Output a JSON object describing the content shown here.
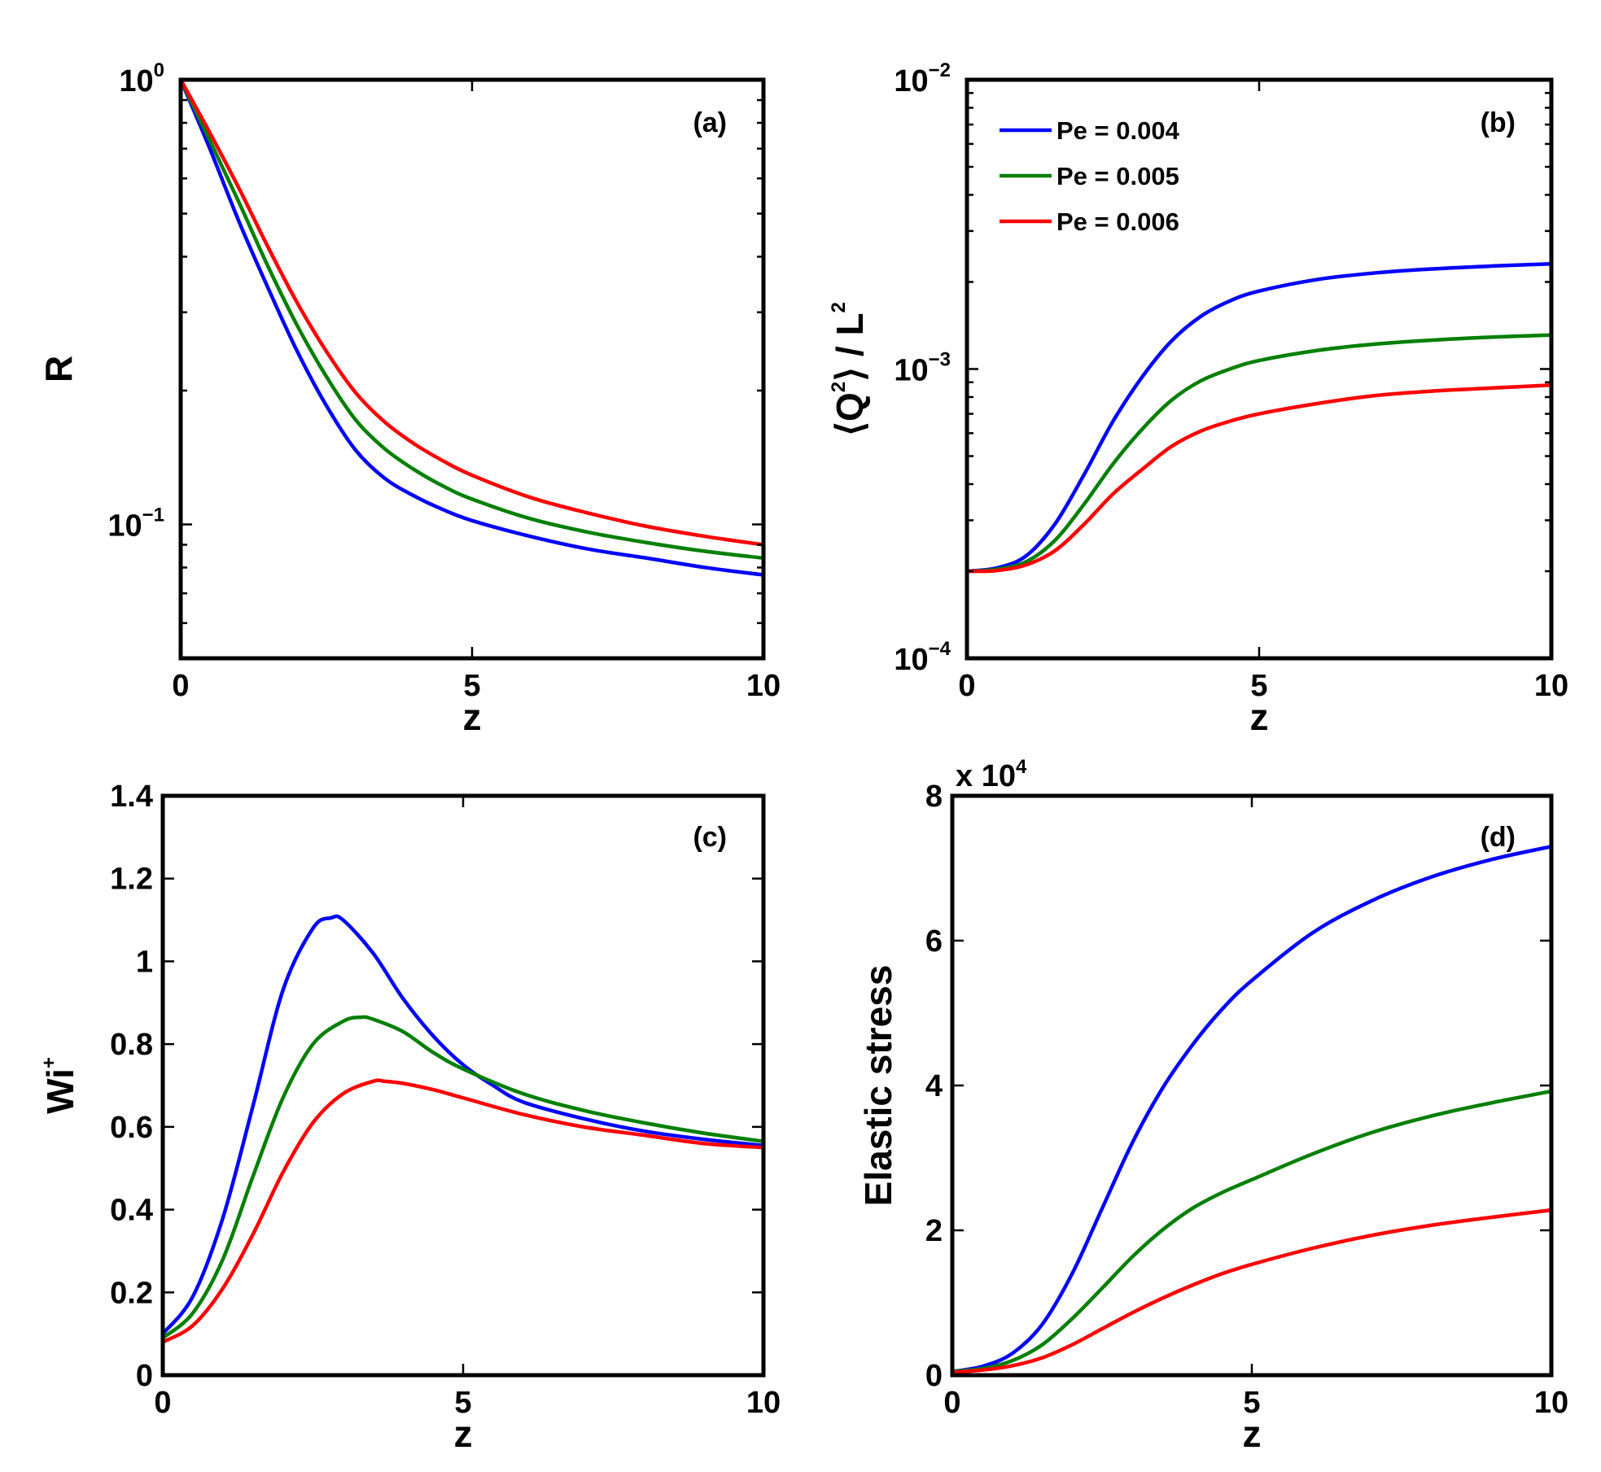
{
  "colors": {
    "blue": "#0000ff",
    "green": "#007f00",
    "red": "#ff0000"
  },
  "legend": {
    "panel": "b",
    "entries": [
      {
        "label": "Pe = 0.004",
        "color": "#0000ff"
      },
      {
        "label": "Pe = 0.005",
        "color": "#007f00"
      },
      {
        "label": "Pe = 0.006",
        "color": "#ff0000"
      }
    ]
  },
  "chart_data": [
    {
      "id": "a",
      "panel_label": "(a)",
      "type": "line",
      "xlabel": "z",
      "ylabel": "R",
      "xlim": [
        0,
        10
      ],
      "ylim": [
        0.05,
        1
      ],
      "yscale": "log",
      "xticks": [
        0,
        5,
        10
      ],
      "yticks": [
        {
          "value": 1,
          "base": "10",
          "exp": "0"
        },
        {
          "value": 0.1,
          "base": "10",
          "exp": "−1"
        }
      ],
      "series": [
        {
          "name": "Pe = 0.004",
          "color": "#0000ff",
          "x": [
            0,
            0.5,
            1,
            1.5,
            2,
            2.5,
            3,
            3.5,
            4,
            4.5,
            5,
            6,
            7,
            8,
            9,
            10
          ],
          "y": [
            1.0,
            0.7,
            0.48,
            0.34,
            0.245,
            0.185,
            0.147,
            0.127,
            0.116,
            0.108,
            0.102,
            0.094,
            0.088,
            0.084,
            0.08,
            0.077
          ]
        },
        {
          "name": "Pe = 0.005",
          "color": "#007f00",
          "x": [
            0,
            0.5,
            1,
            1.5,
            2,
            2.5,
            3,
            3.5,
            4,
            4.5,
            5,
            6,
            7,
            8,
            9,
            10
          ],
          "y": [
            1.0,
            0.73,
            0.53,
            0.38,
            0.28,
            0.215,
            0.172,
            0.148,
            0.133,
            0.122,
            0.114,
            0.103,
            0.096,
            0.091,
            0.087,
            0.084
          ]
        },
        {
          "name": "Pe = 0.006",
          "color": "#ff0000",
          "x": [
            0,
            0.5,
            1,
            1.5,
            2,
            2.5,
            3,
            3.5,
            4,
            4.5,
            5,
            6,
            7,
            8,
            9,
            10
          ],
          "y": [
            1.0,
            0.76,
            0.57,
            0.42,
            0.315,
            0.245,
            0.198,
            0.17,
            0.152,
            0.139,
            0.129,
            0.115,
            0.106,
            0.099,
            0.094,
            0.09
          ]
        }
      ]
    },
    {
      "id": "b",
      "panel_label": "(b)",
      "type": "line",
      "xlabel": "z",
      "ylabel": "⟨Q²⟩ / L²",
      "xlim": [
        0,
        10
      ],
      "ylim": [
        0.0001,
        0.01
      ],
      "yscale": "log",
      "xticks": [
        0,
        5,
        10
      ],
      "yticks": [
        {
          "value": 0.01,
          "base": "10",
          "exp": "−2"
        },
        {
          "value": 0.001,
          "base": "10",
          "exp": "−3"
        },
        {
          "value": 0.0001,
          "base": "10",
          "exp": "−4"
        }
      ],
      "series": [
        {
          "name": "Pe = 0.004",
          "color": "#0000ff",
          "x": [
            0,
            0.5,
            1,
            1.5,
            2,
            2.5,
            3,
            3.5,
            4,
            4.5,
            5,
            6,
            7,
            8,
            9,
            10
          ],
          "y": [
            0.0002,
            0.000205,
            0.000225,
            0.00029,
            0.00043,
            0.00066,
            0.00094,
            0.00125,
            0.00152,
            0.00172,
            0.00186,
            0.00204,
            0.00215,
            0.00222,
            0.00227,
            0.00231
          ]
        },
        {
          "name": "Pe = 0.005",
          "color": "#007f00",
          "x": [
            0,
            0.5,
            1,
            1.5,
            2,
            2.5,
            3,
            3.5,
            4,
            4.5,
            5,
            6,
            7,
            8,
            9,
            10
          ],
          "y": [
            0.0002,
            0.000203,
            0.000215,
            0.000255,
            0.00034,
            0.00047,
            0.00062,
            0.00078,
            0.00091,
            0.001,
            0.00107,
            0.00116,
            0.00122,
            0.00126,
            0.00129,
            0.00131
          ]
        },
        {
          "name": "Pe = 0.006",
          "color": "#ff0000",
          "x": [
            0,
            0.5,
            1,
            1.5,
            2,
            2.5,
            3,
            3.5,
            4,
            4.5,
            5,
            6,
            7,
            8,
            9,
            10
          ],
          "y": [
            0.0002,
            0.000201,
            0.00021,
            0.000235,
            0.00029,
            0.00037,
            0.00045,
            0.00054,
            0.00061,
            0.00066,
            0.0007,
            0.00076,
            0.00081,
            0.00084,
            0.00086,
            0.00088
          ]
        }
      ]
    },
    {
      "id": "c",
      "panel_label": "(c)",
      "type": "line",
      "xlabel": "z",
      "ylabel": "Wi",
      "ylabel_sup": "+",
      "xlim": [
        0,
        10
      ],
      "ylim": [
        0,
        1.4
      ],
      "yscale": "linear",
      "xticks": [
        0,
        5,
        10
      ],
      "yticks": [
        {
          "value": 0,
          "label": "0"
        },
        {
          "value": 0.2,
          "label": "0.2"
        },
        {
          "value": 0.4,
          "label": "0.4"
        },
        {
          "value": 0.6,
          "label": "0.6"
        },
        {
          "value": 0.8,
          "label": "0.8"
        },
        {
          "value": 1,
          "label": "1"
        },
        {
          "value": 1.2,
          "label": "1.2"
        },
        {
          "value": 1.4,
          "label": "1.4"
        }
      ],
      "series": [
        {
          "name": "Pe = 0.004",
          "color": "#0000ff",
          "x": [
            0,
            0.5,
            1,
            1.5,
            2,
            2.5,
            2.8,
            3,
            3.5,
            4,
            4.5,
            5,
            5.5,
            6,
            7,
            8,
            9,
            10
          ],
          "y": [
            0.1,
            0.19,
            0.38,
            0.65,
            0.93,
            1.08,
            1.105,
            1.1,
            1.02,
            0.91,
            0.82,
            0.75,
            0.7,
            0.66,
            0.62,
            0.59,
            0.57,
            0.555
          ]
        },
        {
          "name": "Pe = 0.005",
          "color": "#007f00",
          "x": [
            0,
            0.5,
            1,
            1.5,
            2,
            2.5,
            3,
            3.3,
            3.5,
            4,
            4.5,
            5,
            6,
            7,
            8,
            9,
            10
          ],
          "y": [
            0.09,
            0.15,
            0.28,
            0.48,
            0.67,
            0.8,
            0.855,
            0.865,
            0.86,
            0.83,
            0.78,
            0.74,
            0.68,
            0.64,
            0.61,
            0.585,
            0.565
          ]
        },
        {
          "name": "Pe = 0.006",
          "color": "#ff0000",
          "x": [
            0,
            0.5,
            1,
            1.5,
            2,
            2.5,
            3,
            3.5,
            3.7,
            4,
            4.5,
            5,
            6,
            7,
            8,
            9,
            10
          ],
          "y": [
            0.08,
            0.12,
            0.21,
            0.34,
            0.49,
            0.61,
            0.68,
            0.71,
            0.71,
            0.705,
            0.69,
            0.67,
            0.63,
            0.6,
            0.58,
            0.56,
            0.55
          ]
        }
      ]
    },
    {
      "id": "d",
      "panel_label": "(d)",
      "type": "line",
      "xlabel": "z",
      "ylabel": "Elastic stress",
      "multiplier": {
        "base": "x 10",
        "exp": "4"
      },
      "xlim": [
        0,
        10
      ],
      "ylim": [
        0,
        80000
      ],
      "yscale": "linear",
      "xticks": [
        0,
        5,
        10
      ],
      "yticks": [
        {
          "value": 0,
          "label": "0"
        },
        {
          "value": 20000,
          "label": "2"
        },
        {
          "value": 40000,
          "label": "4"
        },
        {
          "value": 60000,
          "label": "6"
        },
        {
          "value": 80000,
          "label": "8"
        }
      ],
      "series": [
        {
          "name": "Pe = 0.004",
          "color": "#0000ff",
          "x": [
            0,
            0.5,
            1,
            1.5,
            2,
            2.5,
            3,
            3.5,
            4,
            4.5,
            5,
            6,
            7,
            8,
            9,
            10
          ],
          "y": [
            500,
            1200,
            3000,
            7000,
            14000,
            23000,
            32000,
            39500,
            45500,
            50500,
            54500,
            61000,
            65500,
            68800,
            71200,
            73000
          ]
        },
        {
          "name": "Pe = 0.005",
          "color": "#007f00",
          "x": [
            0,
            0.5,
            1,
            1.5,
            2,
            2.5,
            3,
            3.5,
            4,
            4.5,
            5,
            6,
            7,
            8,
            9,
            10
          ],
          "y": [
            500,
            900,
            2000,
            4200,
            7800,
            12000,
            16300,
            20000,
            23000,
            25200,
            27000,
            30500,
            33500,
            35800,
            37600,
            39200
          ]
        },
        {
          "name": "Pe = 0.006",
          "color": "#ff0000",
          "x": [
            0,
            0.5,
            1,
            1.5,
            2,
            2.5,
            3,
            3.5,
            4,
            4.5,
            5,
            6,
            7,
            8,
            9,
            10
          ],
          "y": [
            400,
            700,
            1300,
            2400,
            4200,
            6400,
            8600,
            10600,
            12400,
            14000,
            15300,
            17500,
            19300,
            20700,
            21800,
            22800
          ]
        }
      ]
    }
  ]
}
